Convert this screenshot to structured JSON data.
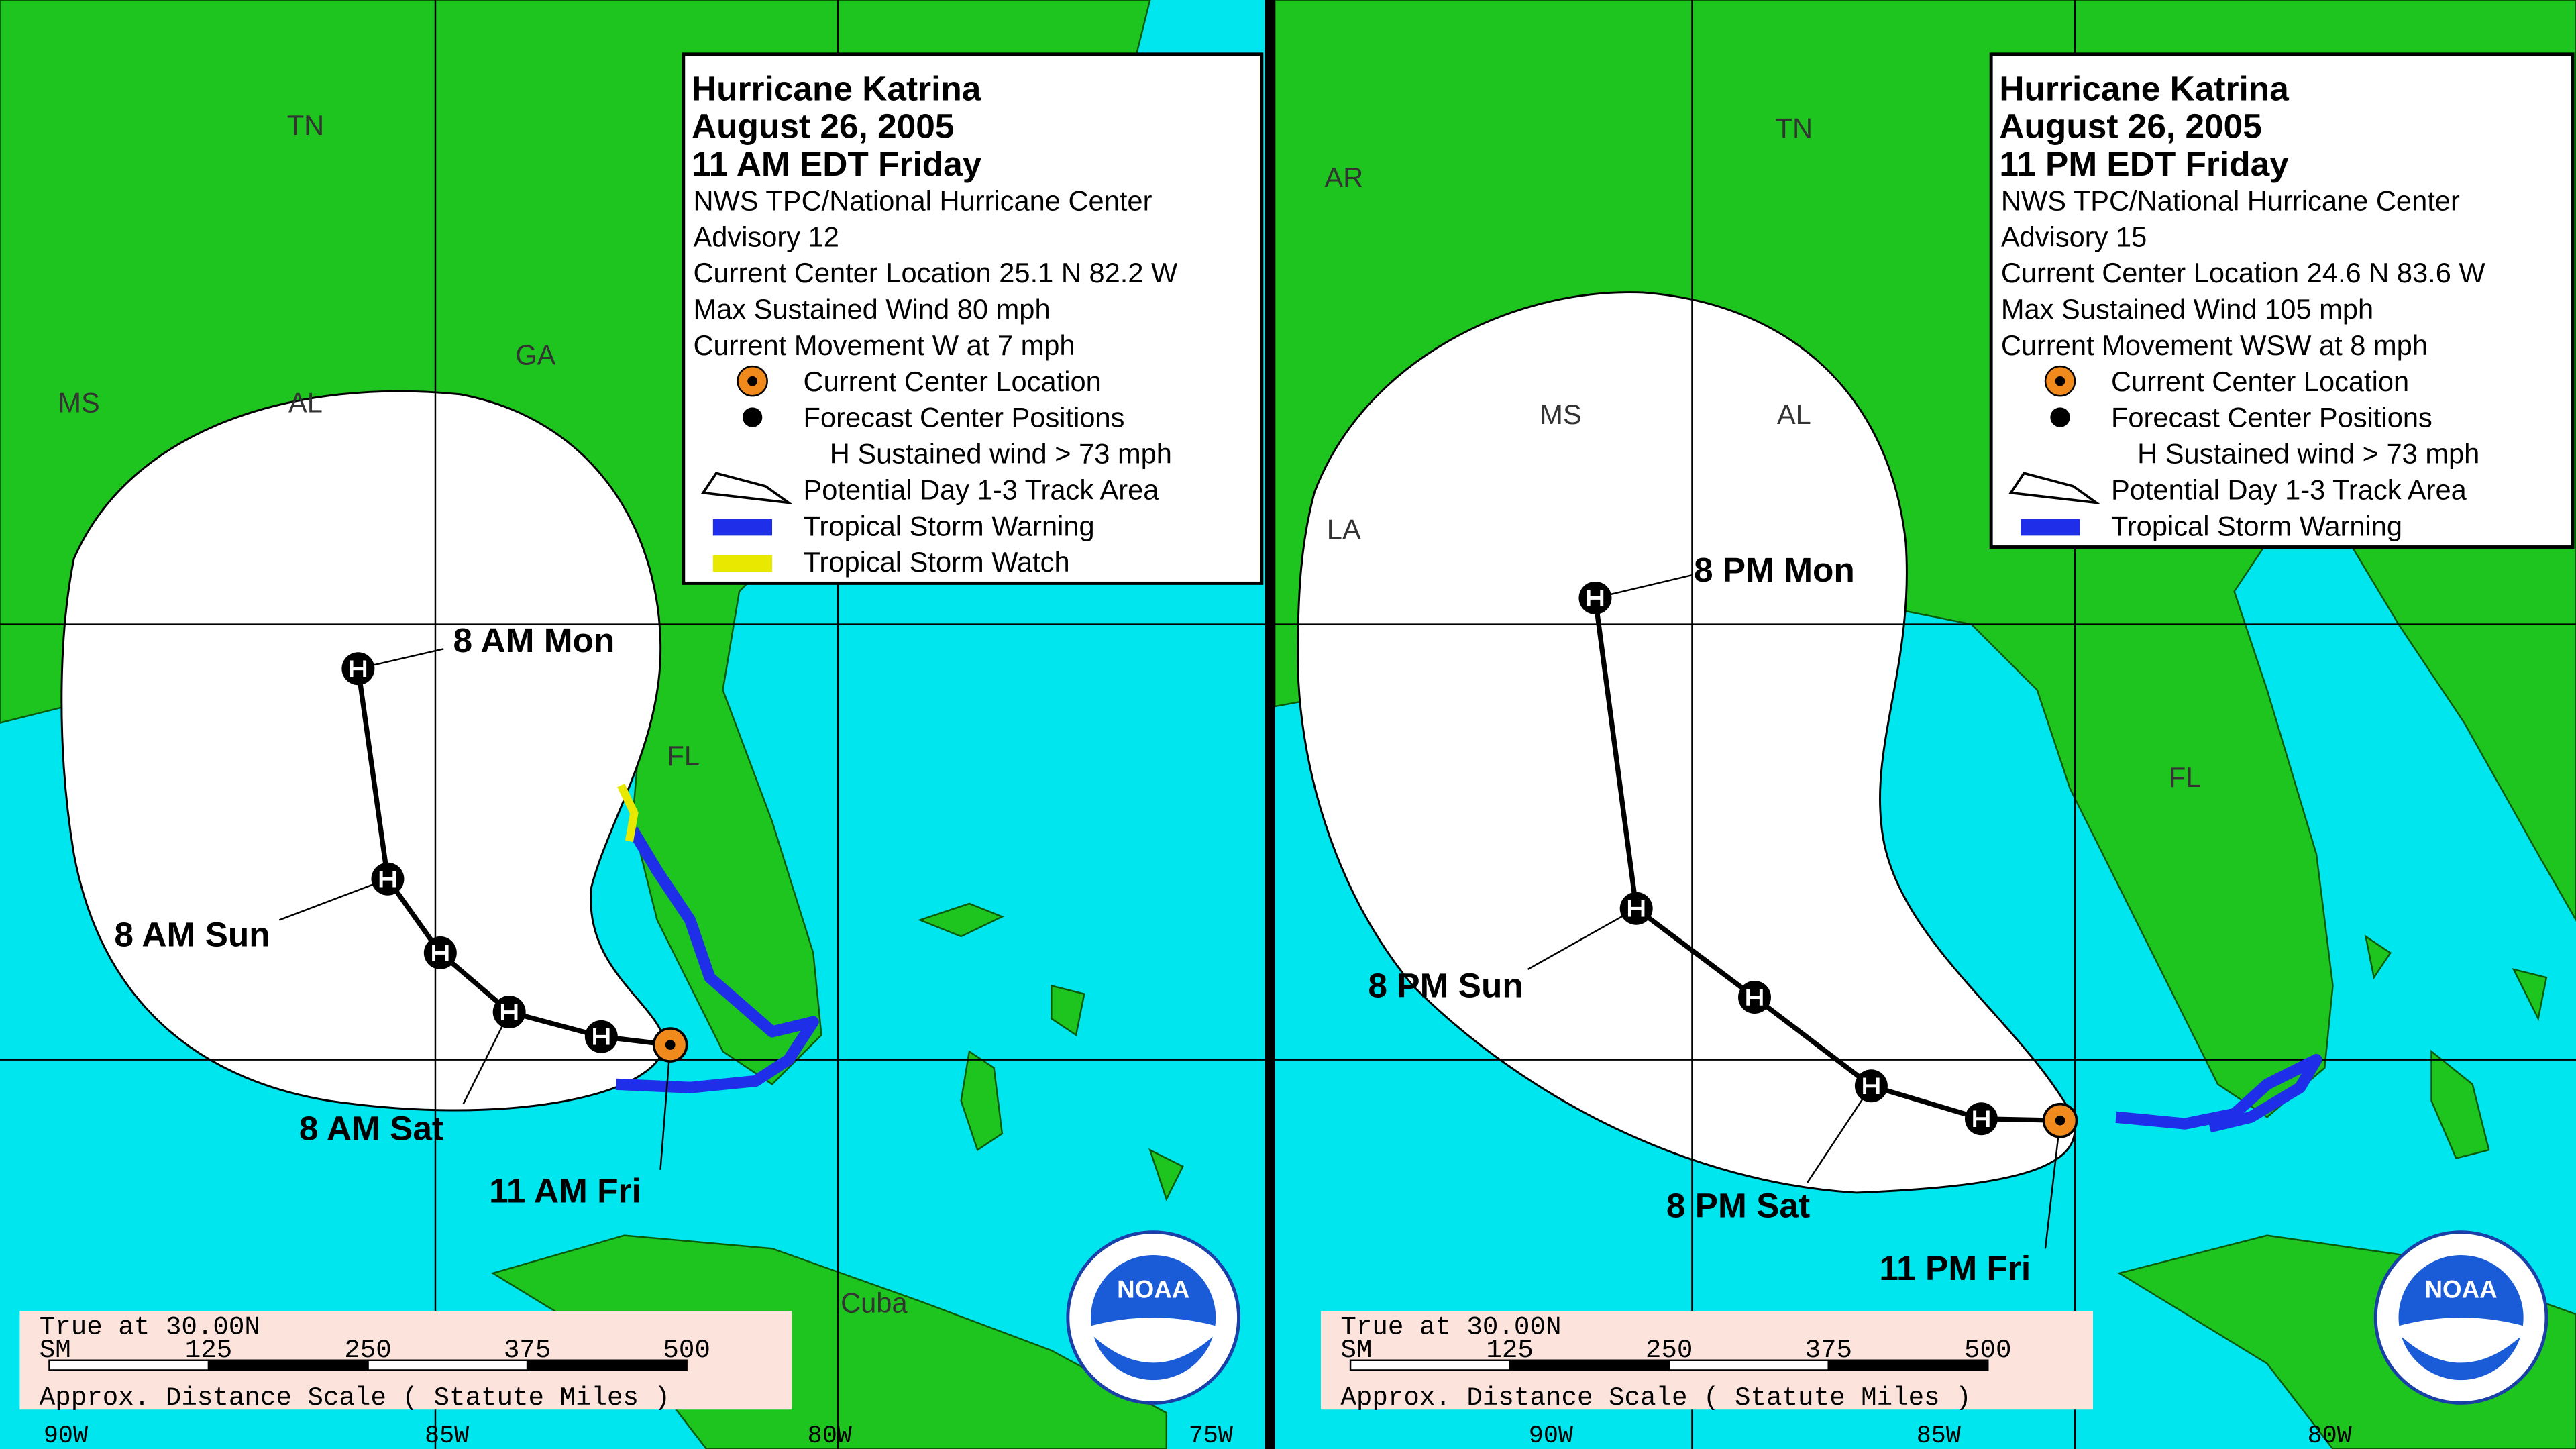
{
  "panels": [
    {
      "legend": {
        "title": "Hurricane Katrina",
        "date": "August 26, 2005",
        "time": "11 AM EDT Friday",
        "agency": "NWS TPC/National Hurricane Center",
        "advisory": "Advisory 12",
        "location": "Current Center Location 25.1 N  82.2 W",
        "wind": "Max Sustained Wind  80 mph",
        "movement": "Current Movement W at  7 mph",
        "items": [
          "Current Center Location",
          "Forecast Center Positions",
          "H  Sustained wind > 73 mph",
          "Potential Day 1-3 Track Area",
          "Tropical Storm Warning",
          "Tropical Storm Watch"
        ]
      },
      "map_labels": [
        "TN",
        "GA",
        "MS",
        "AL",
        "FL",
        "Cuba"
      ],
      "forecast_labels": [
        "8 AM Mon",
        "8 AM Sun",
        "8 AM Sat",
        "11 AM Fri"
      ],
      "scale": {
        "true_at": "True at 30.00N",
        "unit": "SM",
        "ticks": [
          "125",
          "250",
          "375",
          "500"
        ],
        "caption": "Approx. Distance Scale ( Statute Miles )"
      },
      "logo": "NOAA",
      "longitudes": [
        "90W",
        "85W",
        "80W",
        "75W"
      ]
    },
    {
      "legend": {
        "title": "Hurricane Katrina",
        "date": "August 26, 2005",
        "time": "11 PM EDT Friday",
        "agency": "NWS TPC/National Hurricane Center",
        "advisory": "Advisory 15",
        "location": "Current Center Location 24.6 N  83.6 W",
        "wind": "Max Sustained Wind  105 mph",
        "movement": "Current Movement WSW at  8 mph",
        "items": [
          "Current Center Location",
          "Forecast Center Positions",
          "H  Sustained wind > 73 mph",
          "Potential Day 1-3 Track Area",
          "Tropical Storm Warning"
        ]
      },
      "map_labels": [
        "TN",
        "AR",
        "MS",
        "AL",
        "LA",
        "FL"
      ],
      "forecast_labels": [
        "8 PM Mon",
        "8 PM Sun",
        "8 PM Sat",
        "11 PM Fri"
      ],
      "scale": {
        "true_at": "True at 30.00N",
        "unit": "SM",
        "ticks": [
          "125",
          "250",
          "375",
          "500"
        ],
        "caption": "Approx. Distance Scale ( Statute Miles )"
      },
      "logo": "NOAA",
      "longitudes": [
        "90W",
        "85W",
        "80W"
      ]
    }
  ]
}
